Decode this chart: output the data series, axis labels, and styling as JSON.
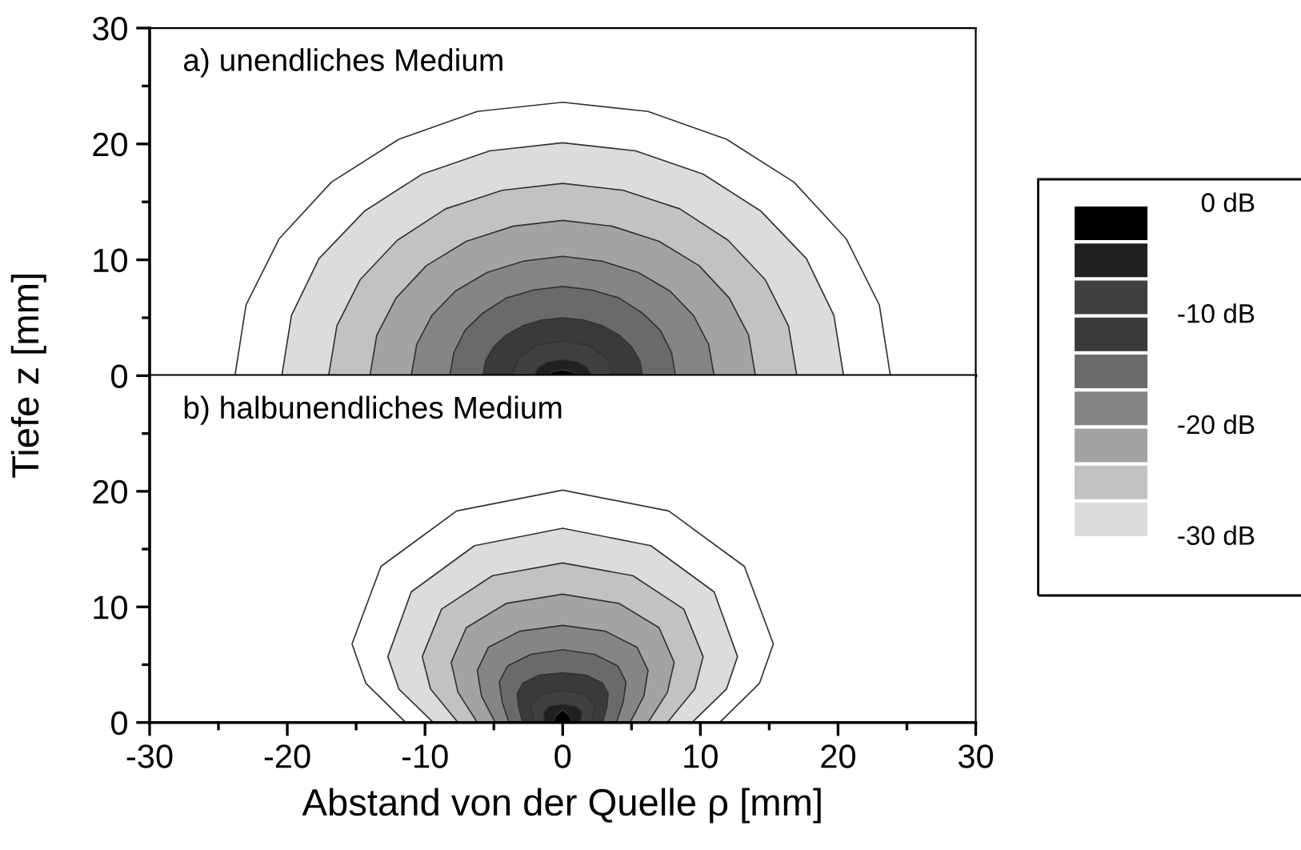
{
  "chart_data": [
    {
      "type": "area",
      "ylabel": "Tiefe z [mm]",
      "annotations": [
        "a) unendliches Medium"
      ],
      "xlim": [
        -30,
        30
      ],
      "ylim": [
        0,
        30
      ],
      "tick_labels": "y",
      "yticks": [
        0,
        {
          "value": 5,
          "label": null
        },
        10,
        {
          "value": 15,
          "label": null
        },
        20,
        {
          "value": 25,
          "label": null
        },
        30
      ],
      "clim": [
        0,
        -30
      ],
      "cticks": [
        {
          "value": 0,
          "label": "0 dB"
        },
        {
          "value": -10,
          "label": "-10 dB"
        },
        {
          "value": -20,
          "label": "-20 dB"
        },
        {
          "value": -30,
          "label": "-30 dB"
        }
      ],
      "series": [
        {
          "color": "#ffffff",
          "x": [
            -23.8,
            -23.0,
            -20.6,
            -16.8,
            -11.9,
            -6.2,
            0,
            6.2,
            11.9,
            16.8,
            20.6,
            23.0,
            23.8
          ],
          "values": [
            0,
            6.1,
            11.8,
            16.7,
            20.4,
            22.8,
            23.6,
            22.8,
            20.4,
            16.7,
            11.8,
            6.1,
            0
          ]
        },
        {
          "color": "#dcdcdc",
          "x": [
            -20.4,
            -19.7,
            -17.7,
            -14.4,
            -10.2,
            -5.3,
            0,
            5.3,
            10.2,
            14.4,
            17.7,
            19.7,
            20.4
          ],
          "values": [
            0,
            5.2,
            10.1,
            14.2,
            17.4,
            19.4,
            20.1,
            19.4,
            17.4,
            14.2,
            10.1,
            5.2,
            0
          ]
        },
        {
          "color": "#c2c2c2",
          "x": [
            -17.0,
            -16.4,
            -14.7,
            -12.0,
            -8.5,
            -4.4,
            0,
            4.4,
            8.5,
            12.0,
            14.7,
            16.4,
            17.0
          ],
          "values": [
            0,
            4.3,
            8.3,
            11.7,
            14.4,
            16.0,
            16.6,
            16.0,
            14.4,
            11.7,
            8.3,
            4.3,
            0
          ]
        },
        {
          "color": "#a3a3a3",
          "x": [
            -14.0,
            -13.5,
            -12.1,
            -9.9,
            -7.0,
            -3.6,
            0,
            3.6,
            7.0,
            9.9,
            12.1,
            13.5,
            14.0
          ],
          "values": [
            0,
            3.5,
            6.7,
            9.5,
            11.6,
            12.9,
            13.4,
            12.9,
            11.6,
            9.5,
            6.7,
            3.5,
            0
          ]
        },
        {
          "color": "#858585",
          "x": [
            -11.0,
            -10.6,
            -9.5,
            -7.8,
            -5.5,
            -2.8,
            0,
            2.8,
            5.5,
            7.8,
            9.5,
            10.6,
            11.0
          ],
          "values": [
            0,
            2.7,
            5.2,
            7.3,
            8.9,
            9.9,
            10.3,
            9.9,
            8.9,
            7.3,
            5.2,
            2.7,
            0
          ]
        },
        {
          "color": "#6a6a6a",
          "x": [
            -8.2,
            -7.9,
            -7.1,
            -5.8,
            -4.1,
            -2.1,
            0,
            2.1,
            4.1,
            5.8,
            7.1,
            7.9,
            8.2
          ],
          "values": [
            0,
            2.0,
            3.9,
            5.4,
            6.7,
            7.4,
            7.7,
            7.4,
            6.7,
            5.4,
            3.9,
            2.0,
            0
          ]
        },
        {
          "color": "#3a3a3a",
          "x": [
            -5.8,
            -5.6,
            -5.0,
            -4.1,
            -2.9,
            -1.5,
            0,
            1.5,
            2.9,
            4.1,
            5.0,
            5.6,
            5.8
          ],
          "values": [
            0,
            1.3,
            2.5,
            3.5,
            4.3,
            4.8,
            5.0,
            4.8,
            4.3,
            3.5,
            2.5,
            1.3,
            0
          ]
        },
        {
          "color": "#404040",
          "x": [
            -3.7,
            -3.2,
            -1.9,
            0,
            1.9,
            3.2,
            3.7
          ],
          "values": [
            0,
            1.5,
            2.6,
            3.0,
            2.6,
            1.5,
            0
          ]
        },
        {
          "color": "#202020",
          "x": [
            -2.1,
            -1.8,
            -1.1,
            0,
            1.1,
            1.8,
            2.1
          ],
          "values": [
            0,
            0.7,
            1.2,
            1.4,
            1.2,
            0.7,
            0
          ]
        },
        {
          "color": "#000000",
          "x": [
            -0.9,
            -0.8,
            -0.5,
            0,
            0.5,
            0.8,
            0.9
          ],
          "values": [
            0,
            0.3,
            0.4,
            0.5,
            0.4,
            0.3,
            0
          ]
        }
      ]
    },
    {
      "type": "area",
      "xlabel": "Abstand von der Quelle ρ [mm]",
      "annotations": [
        "b) halbunendliches Medium"
      ],
      "xlim": [
        -30,
        30
      ],
      "ylim": [
        0,
        30
      ],
      "xticks": [
        -30,
        {
          "value": -25,
          "label": null
        },
        -20,
        {
          "value": -15,
          "label": null
        },
        -10,
        {
          "value": -5,
          "label": null
        },
        0,
        {
          "value": 5,
          "label": null
        },
        10,
        {
          "value": 15,
          "label": null
        },
        20,
        {
          "value": 25,
          "label": null
        },
        30
      ],
      "yticks": [
        0,
        {
          "value": 5,
          "label": null
        },
        10,
        {
          "value": 15,
          "label": null
        },
        20,
        {
          "value": 25,
          "label": null
        }
      ],
      "series": [
        {
          "color": "#ffffff",
          "x": [
            -11.4,
            -14.3,
            -15.3,
            -13.2,
            -7.7,
            0,
            7.7,
            13.2,
            15.3,
            14.3,
            11.4
          ],
          "values": [
            0,
            3.4,
            6.8,
            13.5,
            18.3,
            20.1,
            18.3,
            13.5,
            6.8,
            3.4,
            0
          ]
        },
        {
          "color": "#dcdcdc",
          "x": [
            -9.4,
            -11.9,
            -12.7,
            -11.0,
            -6.4,
            0,
            6.4,
            11.0,
            12.7,
            11.9,
            9.4
          ],
          "values": [
            0,
            2.9,
            5.7,
            11.3,
            15.3,
            16.8,
            15.3,
            11.3,
            5.7,
            2.9,
            0
          ]
        },
        {
          "color": "#c2c2c2",
          "x": [
            -7.6,
            -9.6,
            -10.2,
            -8.8,
            -5.1,
            0,
            5.1,
            8.8,
            10.2,
            9.6,
            7.6
          ],
          "values": [
            0,
            2.9,
            5.7,
            9.8,
            12.7,
            13.8,
            12.7,
            9.8,
            5.7,
            2.9,
            0
          ]
        },
        {
          "color": "#a3a3a3",
          "x": [
            -6.2,
            -7.6,
            -8.1,
            -7.0,
            -4.1,
            0,
            4.1,
            7.0,
            8.1,
            7.6,
            6.2
          ],
          "values": [
            0,
            2.6,
            5.2,
            8.2,
            10.3,
            11.1,
            10.3,
            8.2,
            5.2,
            2.6,
            0
          ]
        },
        {
          "color": "#858585",
          "x": [
            -4.9,
            -5.9,
            -6.2,
            -5.4,
            -3.1,
            0,
            3.1,
            5.4,
            6.2,
            5.9,
            4.9
          ],
          "values": [
            0,
            2.3,
            4.5,
            6.5,
            7.9,
            8.4,
            7.9,
            6.5,
            4.5,
            2.3,
            0
          ]
        },
        {
          "color": "#6a6a6a",
          "x": [
            -3.9,
            -4.4,
            -4.6,
            -4.0,
            -2.3,
            0,
            2.3,
            4.0,
            4.6,
            4.4,
            3.9
          ],
          "values": [
            0,
            1.8,
            3.5,
            4.9,
            5.9,
            6.3,
            5.9,
            4.9,
            3.5,
            1.8,
            0
          ]
        },
        {
          "color": "#3a3a3a",
          "x": [
            -2.9,
            -3.2,
            -3.3,
            -2.9,
            -1.7,
            0,
            1.7,
            2.9,
            3.3,
            3.2,
            2.9
          ],
          "values": [
            0,
            1.3,
            2.5,
            3.4,
            4.1,
            4.3,
            4.1,
            3.4,
            2.5,
            1.3,
            0
          ]
        },
        {
          "color": "#404040",
          "x": [
            -2.1,
            -2.3,
            -1.6,
            0,
            1.6,
            2.3,
            2.1
          ],
          "values": [
            0,
            1.5,
            2.4,
            2.8,
            2.4,
            1.5,
            0
          ]
        },
        {
          "color": "#202020",
          "x": [
            -1.3,
            -1.4,
            -1.0,
            0,
            1.0,
            1.4,
            1.3
          ],
          "values": [
            0,
            0.9,
            1.4,
            1.6,
            1.4,
            0.9,
            0
          ]
        },
        {
          "color": "#000000",
          "x": [
            -0.7,
            -0.5,
            0,
            0.5,
            0.7
          ],
          "values": [
            0,
            0.6,
            1.1,
            0.6,
            0
          ]
        }
      ]
    }
  ]
}
